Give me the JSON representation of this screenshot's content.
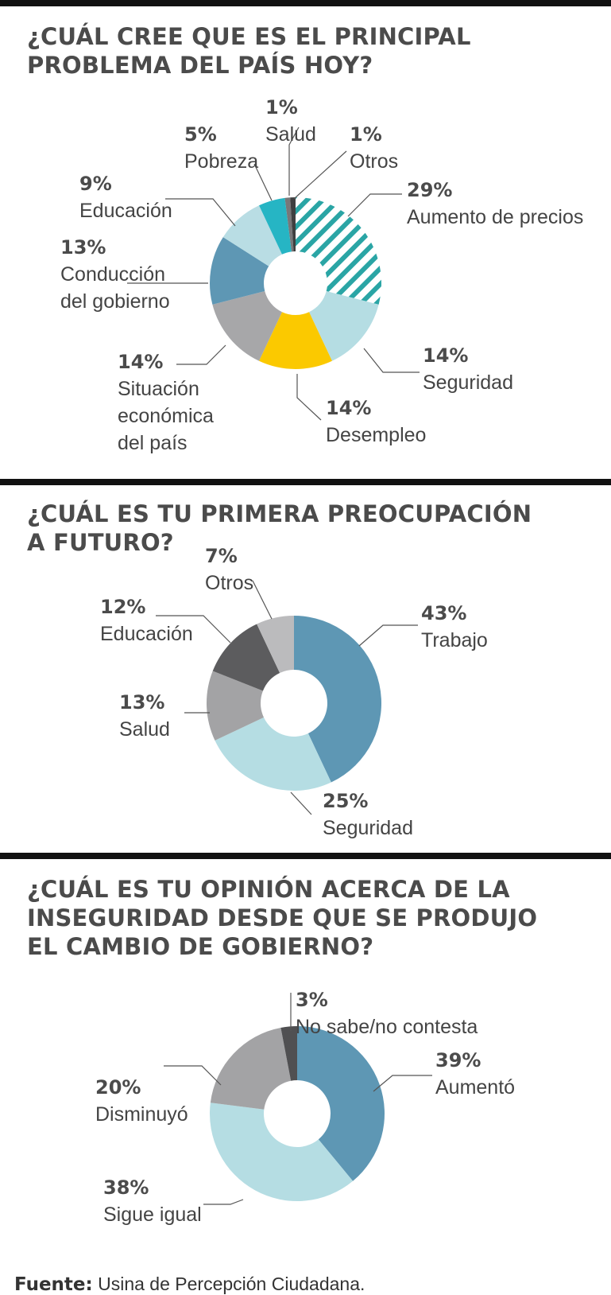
{
  "colors": {
    "hatch_teal": "#2aa5a5",
    "light_blue": "#b5dde3",
    "yellow": "#fbc900",
    "grey": "#a7a7a9",
    "steel_blue": "#5e97b4",
    "pale_blue": "#b9dde4",
    "cyan": "#26b5c4",
    "dark_grey": "#555556",
    "rule": "#111111"
  },
  "charts": [
    {
      "title_lines": [
        "¿CUÁL CREE QUE ES EL PRINCIPAL",
        "PROBLEMA DEL PAÍS HOY?"
      ]
    },
    {
      "title_lines": [
        "¿CUÁL ES TU PRIMERA PREOCUPACIÓN",
        "A FUTURO?"
      ]
    },
    {
      "title_lines": [
        "¿CUÁL ES TU OPINIÓN ACERCA DE LA",
        "INSEGURIDAD DESDE QUE SE PRODUJO",
        "EL CAMBIO DE GOBIERNO?"
      ]
    }
  ],
  "chart_data": [
    {
      "type": "pie",
      "title": "¿CUÁL CREE QUE ES EL PRINCIPAL PROBLEMA DEL PAÍS HOY?",
      "categories": [
        "Aumento de precios",
        "Seguridad",
        "Desempleo",
        "Situación económica del país",
        "Conducción del gobierno",
        "Educación",
        "Pobreza",
        "Salud",
        "Otros"
      ],
      "values": [
        29,
        14,
        14,
        14,
        13,
        9,
        5,
        1,
        1
      ],
      "value_labels": [
        "29%",
        "14%",
        "14%",
        "14%",
        "13%",
        "9%",
        "5%",
        "1%",
        "1%"
      ],
      "name_lines": [
        [
          "Aumento de precios"
        ],
        [
          "Seguridad"
        ],
        [
          "Desempleo"
        ],
        [
          "Situación",
          "económica",
          "del país"
        ],
        [
          "Conducción",
          "del gobierno"
        ],
        [
          "Educación"
        ],
        [
          "Pobreza"
        ],
        [
          "Salud"
        ],
        [
          "Otros"
        ]
      ],
      "colors": [
        "hatch",
        "#b5dde3",
        "#fbc900",
        "#a7a7a9",
        "#5e97b4",
        "#b9dde4",
        "#26b5c4",
        "#777779",
        "#3f3f40"
      ],
      "start_angle": 0,
      "legend": "none"
    },
    {
      "type": "pie",
      "title": "¿CUÁL ES TU PRIMERA PREOCUPACIÓN A FUTURO?",
      "categories": [
        "Trabajo",
        "Seguridad",
        "Salud",
        "Educación",
        "Otros"
      ],
      "values": [
        43,
        25,
        13,
        12,
        7
      ],
      "value_labels": [
        "43%",
        "25%",
        "13%",
        "12%",
        "7%"
      ],
      "name_lines": [
        [
          "Trabajo"
        ],
        [
          "Seguridad"
        ],
        [
          "Salud"
        ],
        [
          "Educación"
        ],
        [
          "Otros"
        ]
      ],
      "colors": [
        "#5e97b4",
        "#b5dde3",
        "#a3a3a5",
        "#5c5c5e",
        "#bbbbbd"
      ],
      "start_angle": 0,
      "legend": "none"
    },
    {
      "type": "pie",
      "title": "¿CUÁL ES TU OPINIÓN ACERCA DE LA INSEGURIDAD DESDE QUE SE PRODUJO EL CAMBIO DE GOBIERNO?",
      "categories": [
        "Aumentó",
        "Sigue igual",
        "Disminuyó",
        "No sabe/no contesta"
      ],
      "values": [
        39,
        38,
        20,
        3
      ],
      "value_labels": [
        "39%",
        "38%",
        "20%",
        "3%"
      ],
      "name_lines": [
        [
          "Aumentó"
        ],
        [
          "Sigue igual"
        ],
        [
          "Disminuyó"
        ],
        [
          "No sabe/no contesta"
        ]
      ],
      "colors": [
        "#5e97b4",
        "#b5dde3",
        "#a3a3a5",
        "#505052"
      ],
      "start_angle": 0,
      "legend": "none"
    }
  ],
  "source": {
    "label": "Fuente:",
    "text": " Usina de Percepción Ciudadana."
  }
}
